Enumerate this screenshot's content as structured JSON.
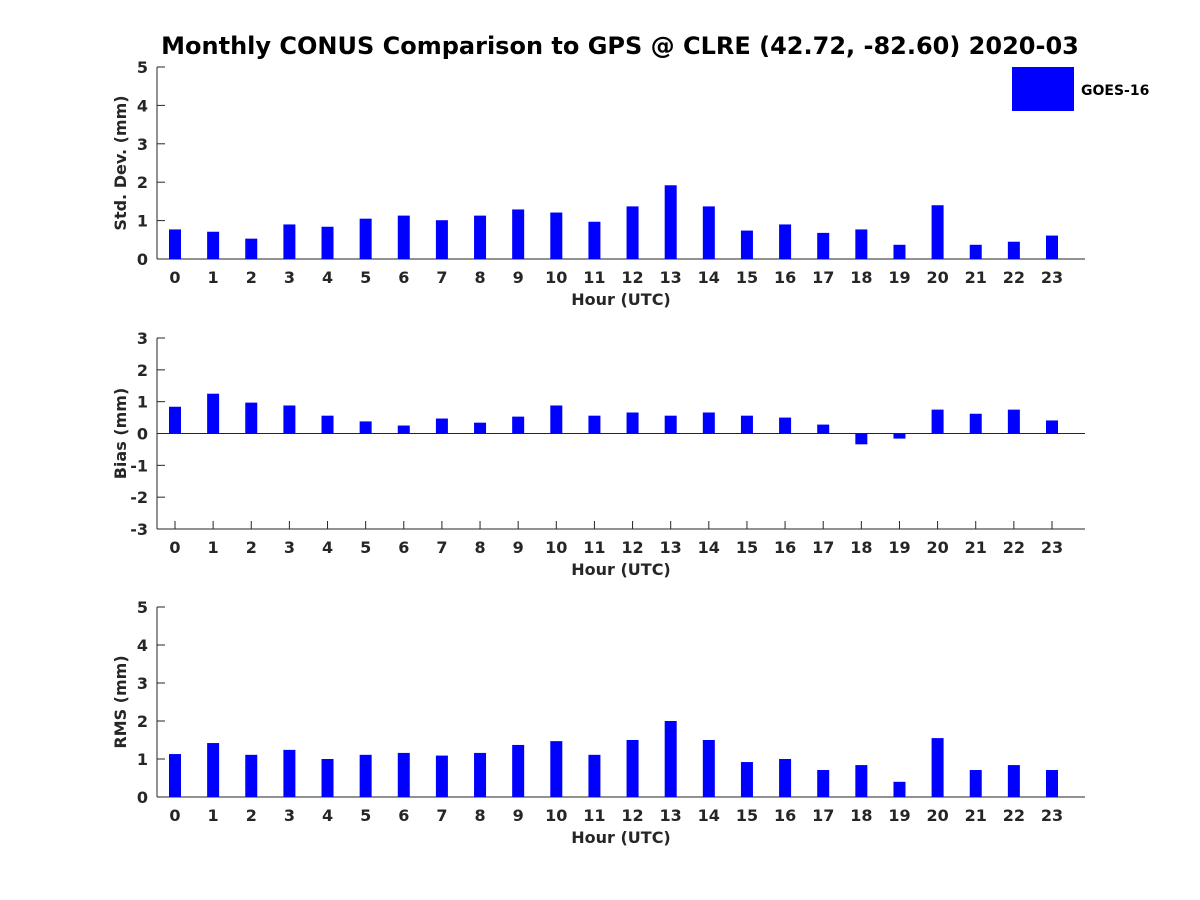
{
  "title": "Monthly CONUS Comparison to GPS @ CLRE (42.72, -82.60) 2020-03",
  "colors": {
    "bar": "#0000ff",
    "axis": "#262626",
    "text": "#262626"
  },
  "legend": {
    "label": "GOES-16",
    "placement": "top-right"
  },
  "chart_data": [
    {
      "type": "bar",
      "name": "stddev",
      "series_name": "GOES-16",
      "xlabel": "Hour (UTC)",
      "ylabel": "Std. Dev. (mm)",
      "ylim": [
        0,
        5
      ],
      "yticks": [
        0,
        1,
        2,
        3,
        4,
        5
      ],
      "categories": [
        "0",
        "1",
        "2",
        "3",
        "4",
        "5",
        "6",
        "7",
        "8",
        "9",
        "10",
        "11",
        "12",
        "13",
        "14",
        "15",
        "16",
        "17",
        "18",
        "19",
        "20",
        "21",
        "22",
        "23"
      ],
      "values": [
        0.77,
        0.71,
        0.53,
        0.9,
        0.84,
        1.05,
        1.13,
        1.01,
        1.13,
        1.29,
        1.21,
        0.97,
        1.37,
        1.92,
        1.37,
        0.74,
        0.9,
        0.68,
        0.77,
        0.37,
        1.4,
        0.37,
        0.45,
        0.61
      ]
    },
    {
      "type": "bar",
      "name": "bias",
      "series_name": "GOES-16",
      "xlabel": "Hour (UTC)",
      "ylabel": "Bias (mm)",
      "ylim": [
        -3,
        3
      ],
      "yticks": [
        -3,
        -2,
        -1,
        0,
        1,
        2,
        3
      ],
      "categories": [
        "0",
        "1",
        "2",
        "3",
        "4",
        "5",
        "6",
        "7",
        "8",
        "9",
        "10",
        "11",
        "12",
        "13",
        "14",
        "15",
        "16",
        "17",
        "18",
        "19",
        "20",
        "21",
        "22",
        "23"
      ],
      "values": [
        0.84,
        1.25,
        0.97,
        0.88,
        0.56,
        0.38,
        0.25,
        0.47,
        0.34,
        0.53,
        0.88,
        0.56,
        0.66,
        0.56,
        0.66,
        0.56,
        0.5,
        0.28,
        -0.34,
        -0.16,
        0.75,
        0.62,
        0.75,
        0.41
      ]
    },
    {
      "type": "bar",
      "name": "rms",
      "series_name": "GOES-16",
      "xlabel": "Hour (UTC)",
      "ylabel": "RMS (mm)",
      "ylim": [
        0,
        5
      ],
      "yticks": [
        0,
        1,
        2,
        3,
        4,
        5
      ],
      "categories": [
        "0",
        "1",
        "2",
        "3",
        "4",
        "5",
        "6",
        "7",
        "8",
        "9",
        "10",
        "11",
        "12",
        "13",
        "14",
        "15",
        "16",
        "17",
        "18",
        "19",
        "20",
        "21",
        "22",
        "23"
      ],
      "values": [
        1.13,
        1.42,
        1.11,
        1.24,
        1.0,
        1.11,
        1.16,
        1.09,
        1.16,
        1.37,
        1.47,
        1.11,
        1.5,
        2.0,
        1.5,
        0.92,
        1.0,
        0.71,
        0.84,
        0.4,
        1.55,
        0.71,
        0.84,
        0.71
      ]
    }
  ]
}
